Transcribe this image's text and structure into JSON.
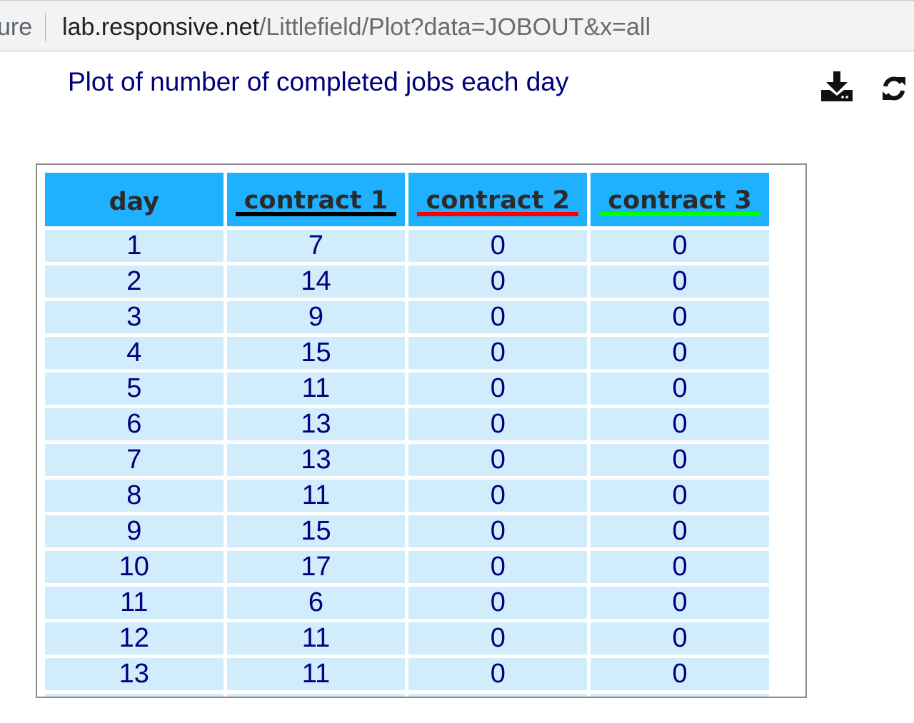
{
  "address_bar": {
    "left_fragment": "ure",
    "host": "lab.responsive.net",
    "path": "/Littlefield/Plot?data=JOBOUT&x=all"
  },
  "page": {
    "title": "Plot of number of completed jobs each day"
  },
  "icons": {
    "download": "download-icon",
    "refresh": "refresh-icon"
  },
  "table": {
    "columns": [
      {
        "label": "day",
        "color": ""
      },
      {
        "label": "contract 1",
        "color": "#000000"
      },
      {
        "label": "contract 2",
        "color": "#ff0000"
      },
      {
        "label": "contract 3",
        "color": "#00ff00"
      }
    ],
    "rows": [
      [
        "1",
        "7",
        "0",
        "0"
      ],
      [
        "2",
        "14",
        "0",
        "0"
      ],
      [
        "3",
        "9",
        "0",
        "0"
      ],
      [
        "4",
        "15",
        "0",
        "0"
      ],
      [
        "5",
        "11",
        "0",
        "0"
      ],
      [
        "6",
        "13",
        "0",
        "0"
      ],
      [
        "7",
        "13",
        "0",
        "0"
      ],
      [
        "8",
        "11",
        "0",
        "0"
      ],
      [
        "9",
        "15",
        "0",
        "0"
      ],
      [
        "10",
        "17",
        "0",
        "0"
      ],
      [
        "11",
        "6",
        "0",
        "0"
      ],
      [
        "12",
        "11",
        "0",
        "0"
      ],
      [
        "13",
        "11",
        "0",
        "0"
      ],
      [
        "",
        "",
        "",
        ""
      ]
    ]
  },
  "colors": {
    "header_bg": "#1fb1ff",
    "cell_bg": "#d1ecfb",
    "cell_text": "#000080",
    "title_text": "#00007a"
  }
}
